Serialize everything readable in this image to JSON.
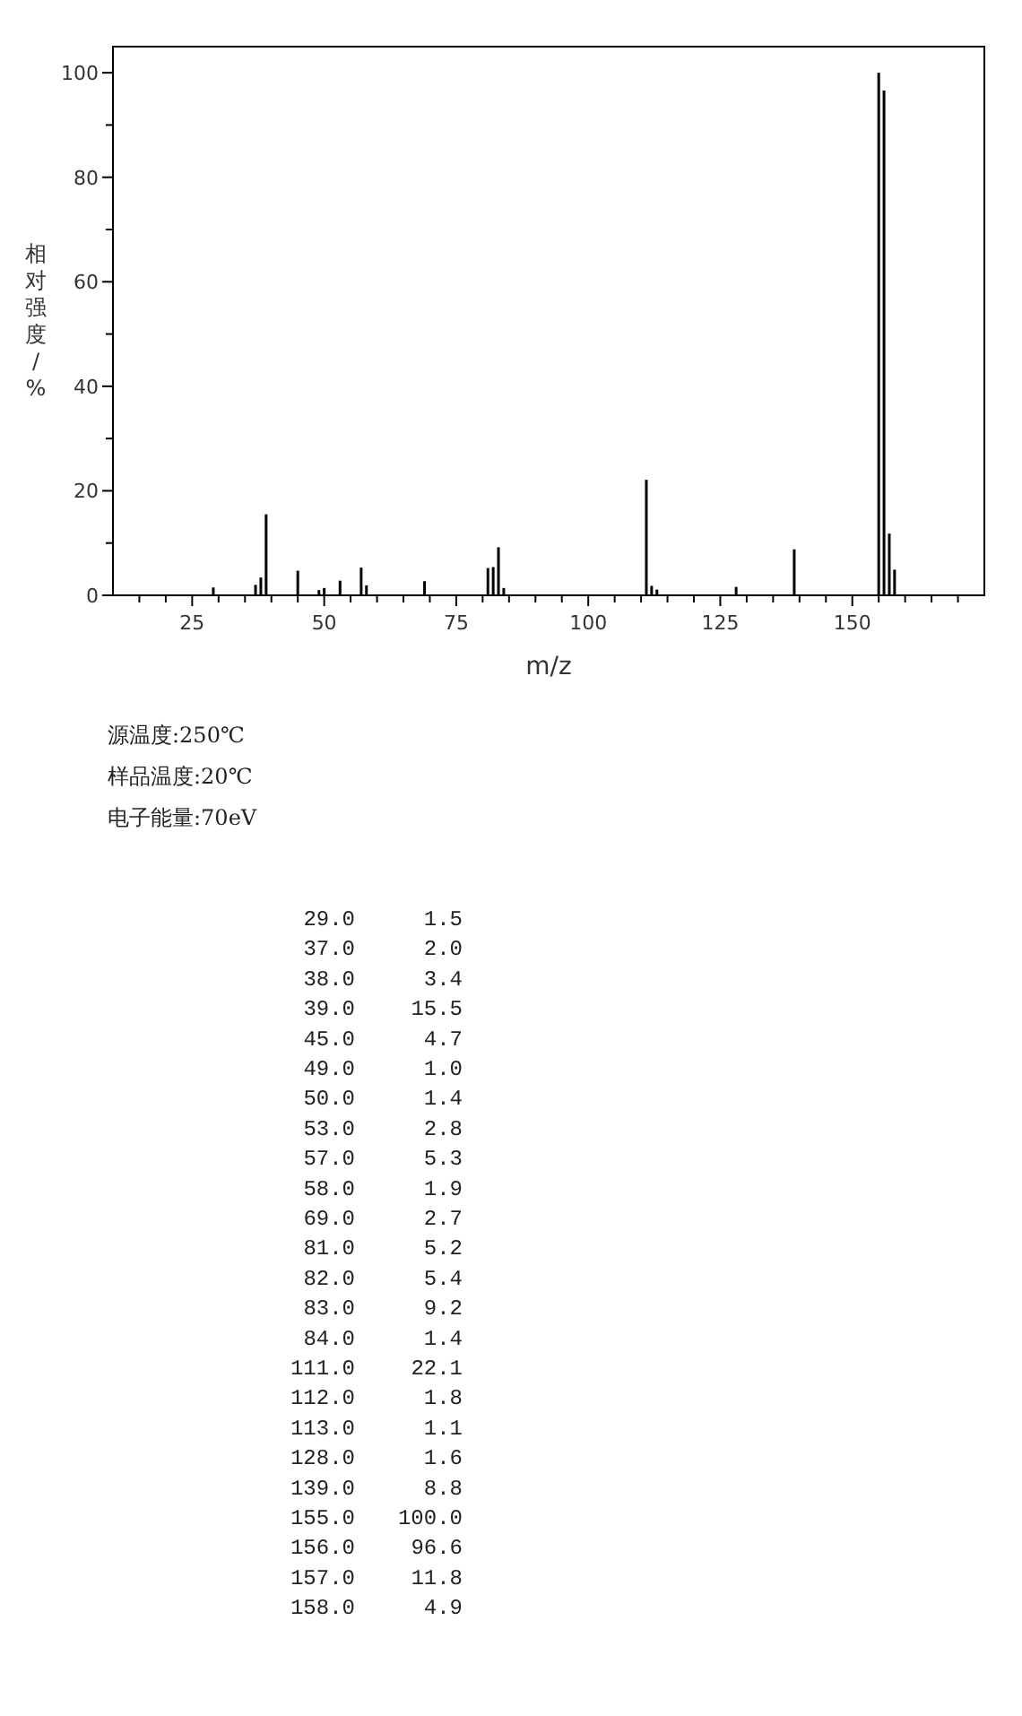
{
  "chart_data": [
    {
      "type": "bar",
      "ylabel": "相对强度/%",
      "xlabel": "m/z",
      "x": [
        29,
        37,
        38,
        39,
        45,
        49,
        50,
        53,
        57,
        58,
        69,
        81,
        82,
        83,
        84,
        111,
        112,
        113,
        128,
        139,
        155,
        156,
        157,
        158
      ],
      "values": [
        1.5,
        2.0,
        3.4,
        15.5,
        4.7,
        1.0,
        1.4,
        2.8,
        5.3,
        1.9,
        2.7,
        5.2,
        5.4,
        9.2,
        1.4,
        22.1,
        1.8,
        1.1,
        1.6,
        8.8,
        100.0,
        96.6,
        11.8,
        4.9
      ],
      "color": "#000000",
      "xlim": [
        10,
        175
      ],
      "ylim": [
        0,
        105
      ],
      "xticks": [
        {
          "value": 15,
          "label": null
        },
        {
          "value": 20,
          "label": null
        },
        25,
        {
          "value": 30,
          "label": null
        },
        {
          "value": 35,
          "label": null
        },
        {
          "value": 40,
          "label": null
        },
        {
          "value": 45,
          "label": null
        },
        50,
        {
          "value": 55,
          "label": null
        },
        {
          "value": 60,
          "label": null
        },
        {
          "value": 65,
          "label": null
        },
        {
          "value": 70,
          "label": null
        },
        75,
        {
          "value": 80,
          "label": null
        },
        {
          "value": 85,
          "label": null
        },
        {
          "value": 90,
          "label": null
        },
        {
          "value": 95,
          "label": null
        },
        100,
        {
          "value": 105,
          "label": null
        },
        {
          "value": 110,
          "label": null
        },
        {
          "value": 115,
          "label": null
        },
        {
          "value": 120,
          "label": null
        },
        125,
        {
          "value": 130,
          "label": null
        },
        {
          "value": 135,
          "label": null
        },
        {
          "value": 140,
          "label": null
        },
        {
          "value": 145,
          "label": null
        },
        150,
        {
          "value": 155,
          "label": null
        },
        {
          "value": 160,
          "label": null
        },
        {
          "value": 165,
          "label": null
        },
        {
          "value": 170,
          "label": null
        }
      ],
      "yticks": [
        0,
        {
          "value": 10,
          "label": null
        },
        20,
        {
          "value": 30,
          "label": null
        },
        40,
        {
          "value": 50,
          "label": null
        },
        60,
        {
          "value": 70,
          "label": null
        },
        80,
        {
          "value": 90,
          "label": null
        },
        100
      ],
      "annotations": [
        "源温度:250℃",
        "样品温度:20℃",
        "电子能量:70eV"
      ]
    },
    {
      "type": "other",
      "annotations": [
        "29.0",
        "1.5",
        "37.0",
        "2.0",
        "38.0",
        "3.4",
        "39.0",
        "15.5",
        "45.0",
        "4.7",
        "49.0",
        "1.0",
        "50.0",
        "1.4",
        "53.0",
        "2.8",
        "57.0",
        "5.3",
        "58.0",
        "1.9",
        "69.0",
        "2.7",
        "81.0",
        "5.2",
        "82.0",
        "5.4",
        "83.0",
        "9.2",
        "84.0",
        "1.4",
        "111.0",
        "22.1",
        "112.0",
        "1.8",
        "113.0",
        "1.1",
        "128.0",
        "1.6",
        "139.0",
        "8.8",
        "155.0",
        "100.0",
        "156.0",
        "96.6",
        "157.0",
        "11.8",
        "158.0",
        "4.9"
      ]
    }
  ]
}
